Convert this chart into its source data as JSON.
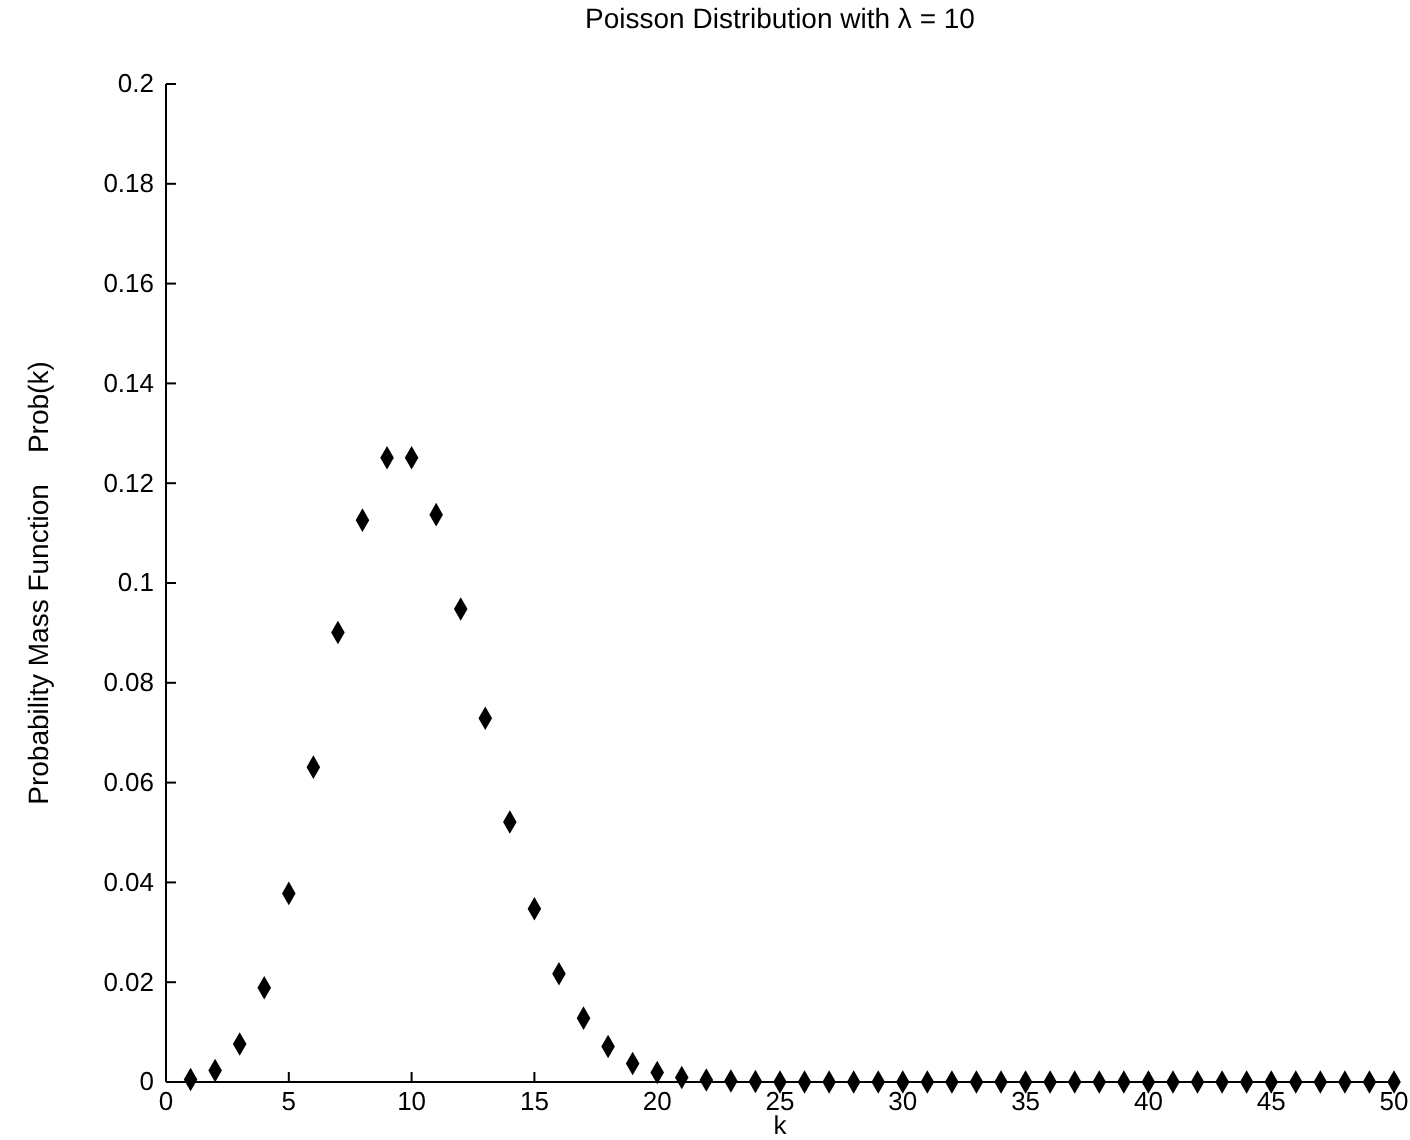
{
  "chart_data": {
    "type": "scatter",
    "title": "Poisson Distribution with λ = 10",
    "xlabel": "k",
    "ylabel": "Probability Mass Function    Prob(k)",
    "x": [
      1,
      2,
      3,
      4,
      5,
      6,
      7,
      8,
      9,
      10,
      11,
      12,
      13,
      14,
      15,
      16,
      17,
      18,
      19,
      20,
      21,
      22,
      23,
      24,
      25,
      26,
      27,
      28,
      29,
      30,
      31,
      32,
      33,
      34,
      35,
      36,
      37,
      38,
      39,
      40,
      41,
      42,
      43,
      44,
      45,
      46,
      47,
      48,
      49,
      50
    ],
    "series": [
      {
        "color": "#000000",
        "values": [
          0.0005,
          0.0023,
          0.0076,
          0.0189,
          0.0378,
          0.0631,
          0.0901,
          0.1126,
          0.1251,
          0.1251,
          0.1137,
          0.0948,
          0.0729,
          0.0521,
          0.0347,
          0.0217,
          0.0128,
          0.0071,
          0.0037,
          0.0019,
          0.0009,
          0.0004,
          0.0002,
          0.0001,
          0,
          0,
          0,
          0,
          0,
          0,
          0,
          0,
          0,
          0,
          0,
          0,
          0,
          0,
          0,
          0,
          0,
          0,
          0,
          0,
          0,
          0,
          0,
          0,
          0,
          0
        ]
      }
    ],
    "xlim": [
      0,
      50
    ],
    "xticks": [
      0,
      5,
      10,
      15,
      20,
      25,
      30,
      35,
      40,
      45,
      50
    ],
    "ylim": [
      0,
      0.2
    ],
    "yticks": [
      0,
      0.02,
      0.04,
      0.06,
      0.08,
      0.1,
      0.12,
      0.14,
      0.16,
      0.18,
      0.2
    ],
    "marker": "diamond"
  }
}
